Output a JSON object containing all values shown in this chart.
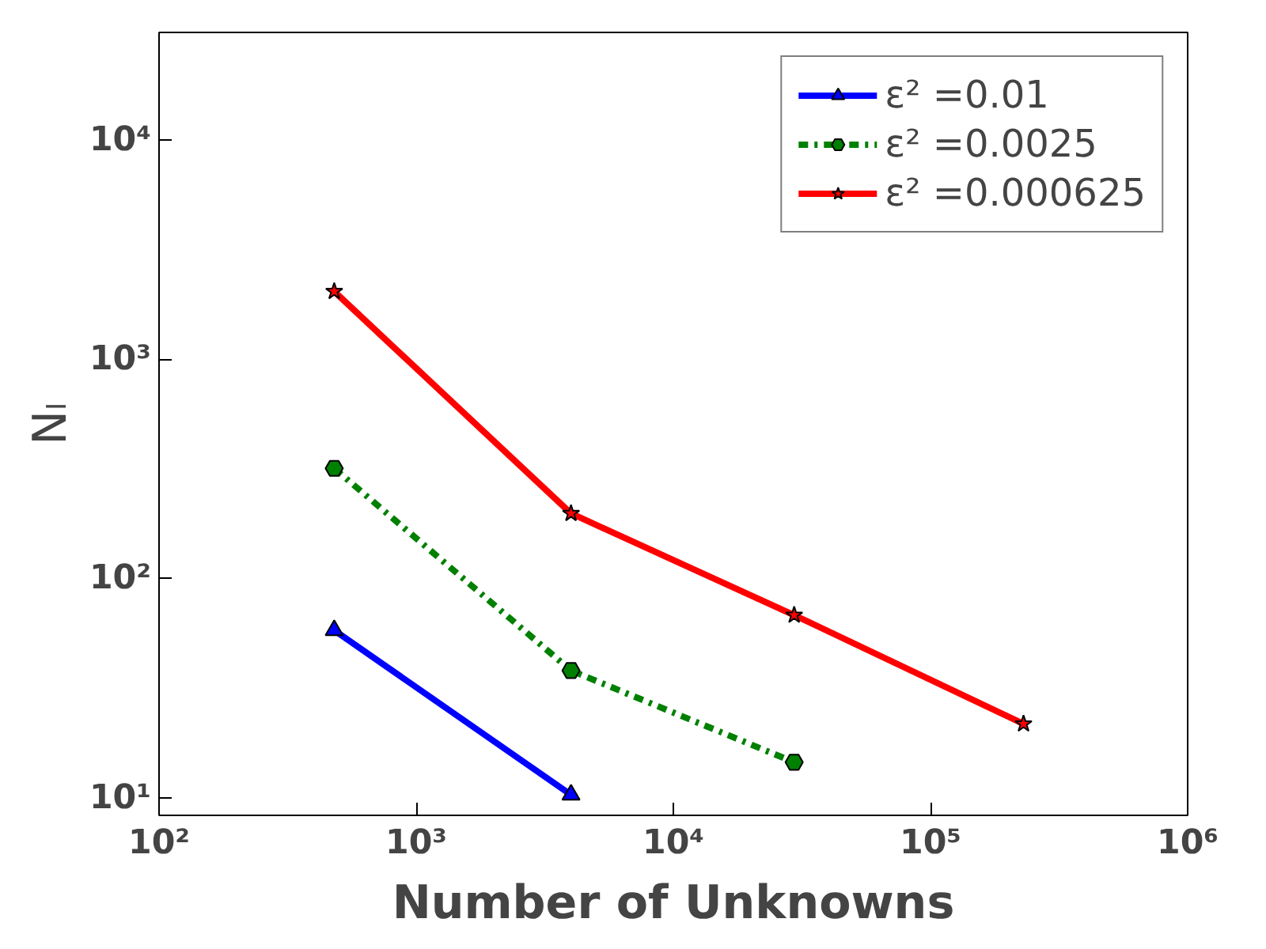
{
  "chart_data": {
    "type": "line",
    "xlabel": "Number of Unknowns",
    "ylabel": "Nₗ",
    "log": "xy",
    "xlim": [
      100,
      1000000
    ],
    "ylim": [
      8.3,
      31000
    ],
    "xticks": [
      {
        "value": 100,
        "label": "10²"
      },
      {
        "value": 1000,
        "label": "10³"
      },
      {
        "value": 10000,
        "label": "10⁴"
      },
      {
        "value": 100000,
        "label": "10⁵"
      },
      {
        "value": 1000000,
        "label": "10⁶"
      }
    ],
    "yticks": [
      {
        "value": 10,
        "label": "10¹"
      },
      {
        "value": 100,
        "label": "10²"
      },
      {
        "value": 1000,
        "label": "10³"
      },
      {
        "value": 10000,
        "label": "10⁴"
      }
    ],
    "grid": false,
    "legend": "top right",
    "series": [
      {
        "name": "ε² =0.01",
        "color": "#0000ff",
        "marker": "triangle",
        "line_style": "solid",
        "x": [
          480,
          4000
        ],
        "values": [
          58,
          10.3
        ]
      },
      {
        "name": "ε² =0.0025",
        "color": "#008000",
        "marker": "circle",
        "line_style": "dashdot",
        "x": [
          480,
          4000,
          29500
        ],
        "values": [
          318,
          38,
          14.5
        ]
      },
      {
        "name": "ε² =0.000625",
        "color": "#ff0000",
        "marker": "star",
        "line_style": "solid",
        "x": [
          480,
          4000,
          29500,
          230000
        ],
        "values": [
          2040,
          198,
          68,
          21.7
        ]
      }
    ]
  }
}
